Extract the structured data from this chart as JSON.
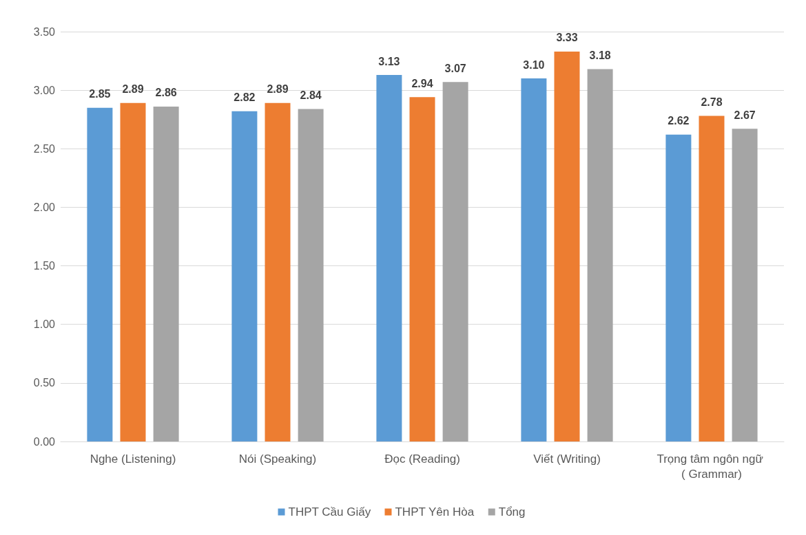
{
  "chart_data": {
    "type": "bar",
    "categories": [
      "Nghe (Listening)",
      "Nói (Speaking)",
      "Đọc (Reading)",
      "Viết (Writing)",
      "Trọng tâm ngôn ngữ ( Grammar)"
    ],
    "series": [
      {
        "name": "THPT Cầu Giấy",
        "color": "#5b9bd5",
        "values": [
          2.85,
          2.82,
          3.13,
          3.1,
          2.62
        ],
        "value_labels": [
          "2.85",
          "2.82",
          "3.13",
          "3.10",
          "2.62"
        ]
      },
      {
        "name": "THPT Yên Hòa",
        "color": "#ed7d31",
        "values": [
          2.89,
          2.89,
          2.94,
          3.33,
          2.78
        ],
        "value_labels": [
          "2.89",
          "2.89",
          "2.94",
          "3.33",
          "2.78"
        ]
      },
      {
        "name": "Tổng",
        "color": "#a5a5a5",
        "values": [
          2.86,
          2.84,
          3.07,
          3.18,
          2.67
        ],
        "value_labels": [
          "2.86",
          "2.84",
          "3.07",
          "3.18",
          "2.67"
        ]
      }
    ],
    "ylim": [
      0,
      3.5
    ],
    "yticks": [
      {
        "value": 0,
        "label": "0.00"
      },
      {
        "value": 0.5,
        "label": "0.50"
      },
      {
        "value": 1,
        "label": "1.00"
      },
      {
        "value": 1.5,
        "label": "1.50"
      },
      {
        "value": 2,
        "label": "2.00"
      },
      {
        "value": 2.5,
        "label": "2.50"
      },
      {
        "value": 3,
        "label": "3.00"
      },
      {
        "value": 3.5,
        "label": "3.50"
      }
    ],
    "grid": "y",
    "legend": "bottom"
  }
}
